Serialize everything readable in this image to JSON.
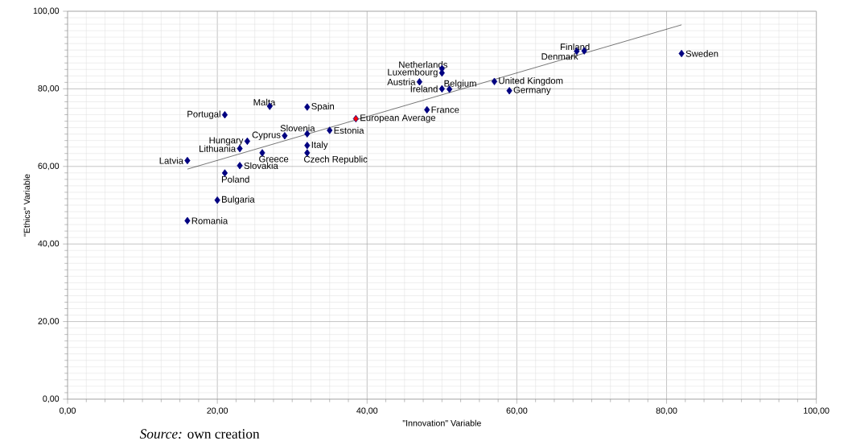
{
  "chart_data": {
    "type": "scatter",
    "xlabel": "\"Innovation\" Variable",
    "ylabel": "\"Ethics\" Variable",
    "xlim": [
      0,
      100
    ],
    "ylim": [
      0,
      100
    ],
    "xticks": [
      {
        "value": 0,
        "label": "0,00"
      },
      {
        "value": 20,
        "label": "20,00"
      },
      {
        "value": 40,
        "label": "40,00"
      },
      {
        "value": 60,
        "label": "60,00"
      },
      {
        "value": 80,
        "label": "80,00"
      },
      {
        "value": 100,
        "label": "100,00"
      }
    ],
    "yticks": [
      {
        "value": 0,
        "label": "0,00"
      },
      {
        "value": 20,
        "label": "20,00"
      },
      {
        "value": 40,
        "label": "40,00"
      },
      {
        "value": 60,
        "label": "60,00"
      },
      {
        "value": 80,
        "label": "80,00"
      },
      {
        "value": 100,
        "label": "100,00"
      }
    ],
    "grid": true,
    "marker": "diamond",
    "series": [
      {
        "color": "#000080",
        "colors": [
          "#000080",
          "#000080",
          "#000080",
          "#000080",
          "#000080",
          "#000080",
          "#000080",
          "#000080",
          "#000080",
          "#000080",
          "#000080",
          "#000080",
          "#000080",
          "#000080",
          "#000080",
          "#000080",
          "#ff0000",
          "#000080",
          "#000080",
          "#000080",
          "#000080",
          "#000080",
          "#000080",
          "#000080",
          "#000080",
          "#000080",
          "#000080",
          "#000080"
        ],
        "x": [
          16,
          16,
          20,
          21,
          21,
          23,
          23,
          24,
          26,
          27,
          29,
          32,
          32,
          32,
          32,
          35,
          38.5,
          47,
          48,
          50,
          50,
          50,
          51,
          57,
          59,
          68,
          69,
          82
        ],
        "values": [
          61.5,
          46.0,
          51.3,
          58.3,
          73.3,
          60.2,
          64.6,
          66.5,
          63.5,
          75.5,
          67.9,
          68.4,
          75.3,
          65.4,
          63.5,
          69.3,
          72.3,
          81.8,
          74.6,
          80.0,
          84.1,
          85.2,
          79.9,
          81.9,
          79.5,
          89.7,
          89.8,
          89.1
        ]
      },
      {
        "type": "line",
        "color": "#000000",
        "marker": "none",
        "x": [
          16,
          82
        ],
        "values": [
          59.3,
          96.5
        ]
      }
    ],
    "annotations": [
      {
        "text": "Latvia",
        "x": 16,
        "y": 61.5
      },
      {
        "text": "Romania",
        "x": 16,
        "y": 46.0
      },
      {
        "text": "Bulgaria",
        "x": 20,
        "y": 51.3
      },
      {
        "text": "Poland",
        "x": 21,
        "y": 58.3
      },
      {
        "text": "Portugal",
        "x": 21,
        "y": 73.3
      },
      {
        "text": "Slovakia",
        "x": 23,
        "y": 60.2
      },
      {
        "text": "Lithuania",
        "x": 23,
        "y": 64.6
      },
      {
        "text": "Hungary",
        "x": 24,
        "y": 66.5
      },
      {
        "text": "Greece",
        "x": 26,
        "y": 63.5
      },
      {
        "text": "Malta",
        "x": 27,
        "y": 75.5
      },
      {
        "text": "Cyprus",
        "x": 29,
        "y": 67.9
      },
      {
        "text": "Slovenia",
        "x": 32,
        "y": 68.4
      },
      {
        "text": "Spain",
        "x": 32,
        "y": 75.3
      },
      {
        "text": "Italy",
        "x": 32,
        "y": 65.4
      },
      {
        "text": "Czech Republic",
        "x": 32,
        "y": 63.5
      },
      {
        "text": "Estonia",
        "x": 35,
        "y": 69.3
      },
      {
        "text": "European Average",
        "x": 38.5,
        "y": 72.3
      },
      {
        "text": "Austria",
        "x": 47,
        "y": 81.8
      },
      {
        "text": "France",
        "x": 48,
        "y": 74.6
      },
      {
        "text": "Ireland",
        "x": 50,
        "y": 80.0
      },
      {
        "text": "Luxembourg",
        "x": 50,
        "y": 84.1
      },
      {
        "text": "Netherlands",
        "x": 50,
        "y": 85.2
      },
      {
        "text": "Belgium",
        "x": 51,
        "y": 79.9
      },
      {
        "text": "United Kingdom",
        "x": 57,
        "y": 81.9
      },
      {
        "text": "Germany",
        "x": 59,
        "y": 79.5
      },
      {
        "text": "Denmark",
        "x": 68,
        "y": 89.7
      },
      {
        "text": "Finland",
        "x": 69,
        "y": 89.8
      },
      {
        "text": "Sweden",
        "x": 82,
        "y": 89.1
      },
      "*Source:* own creation"
    ]
  }
}
